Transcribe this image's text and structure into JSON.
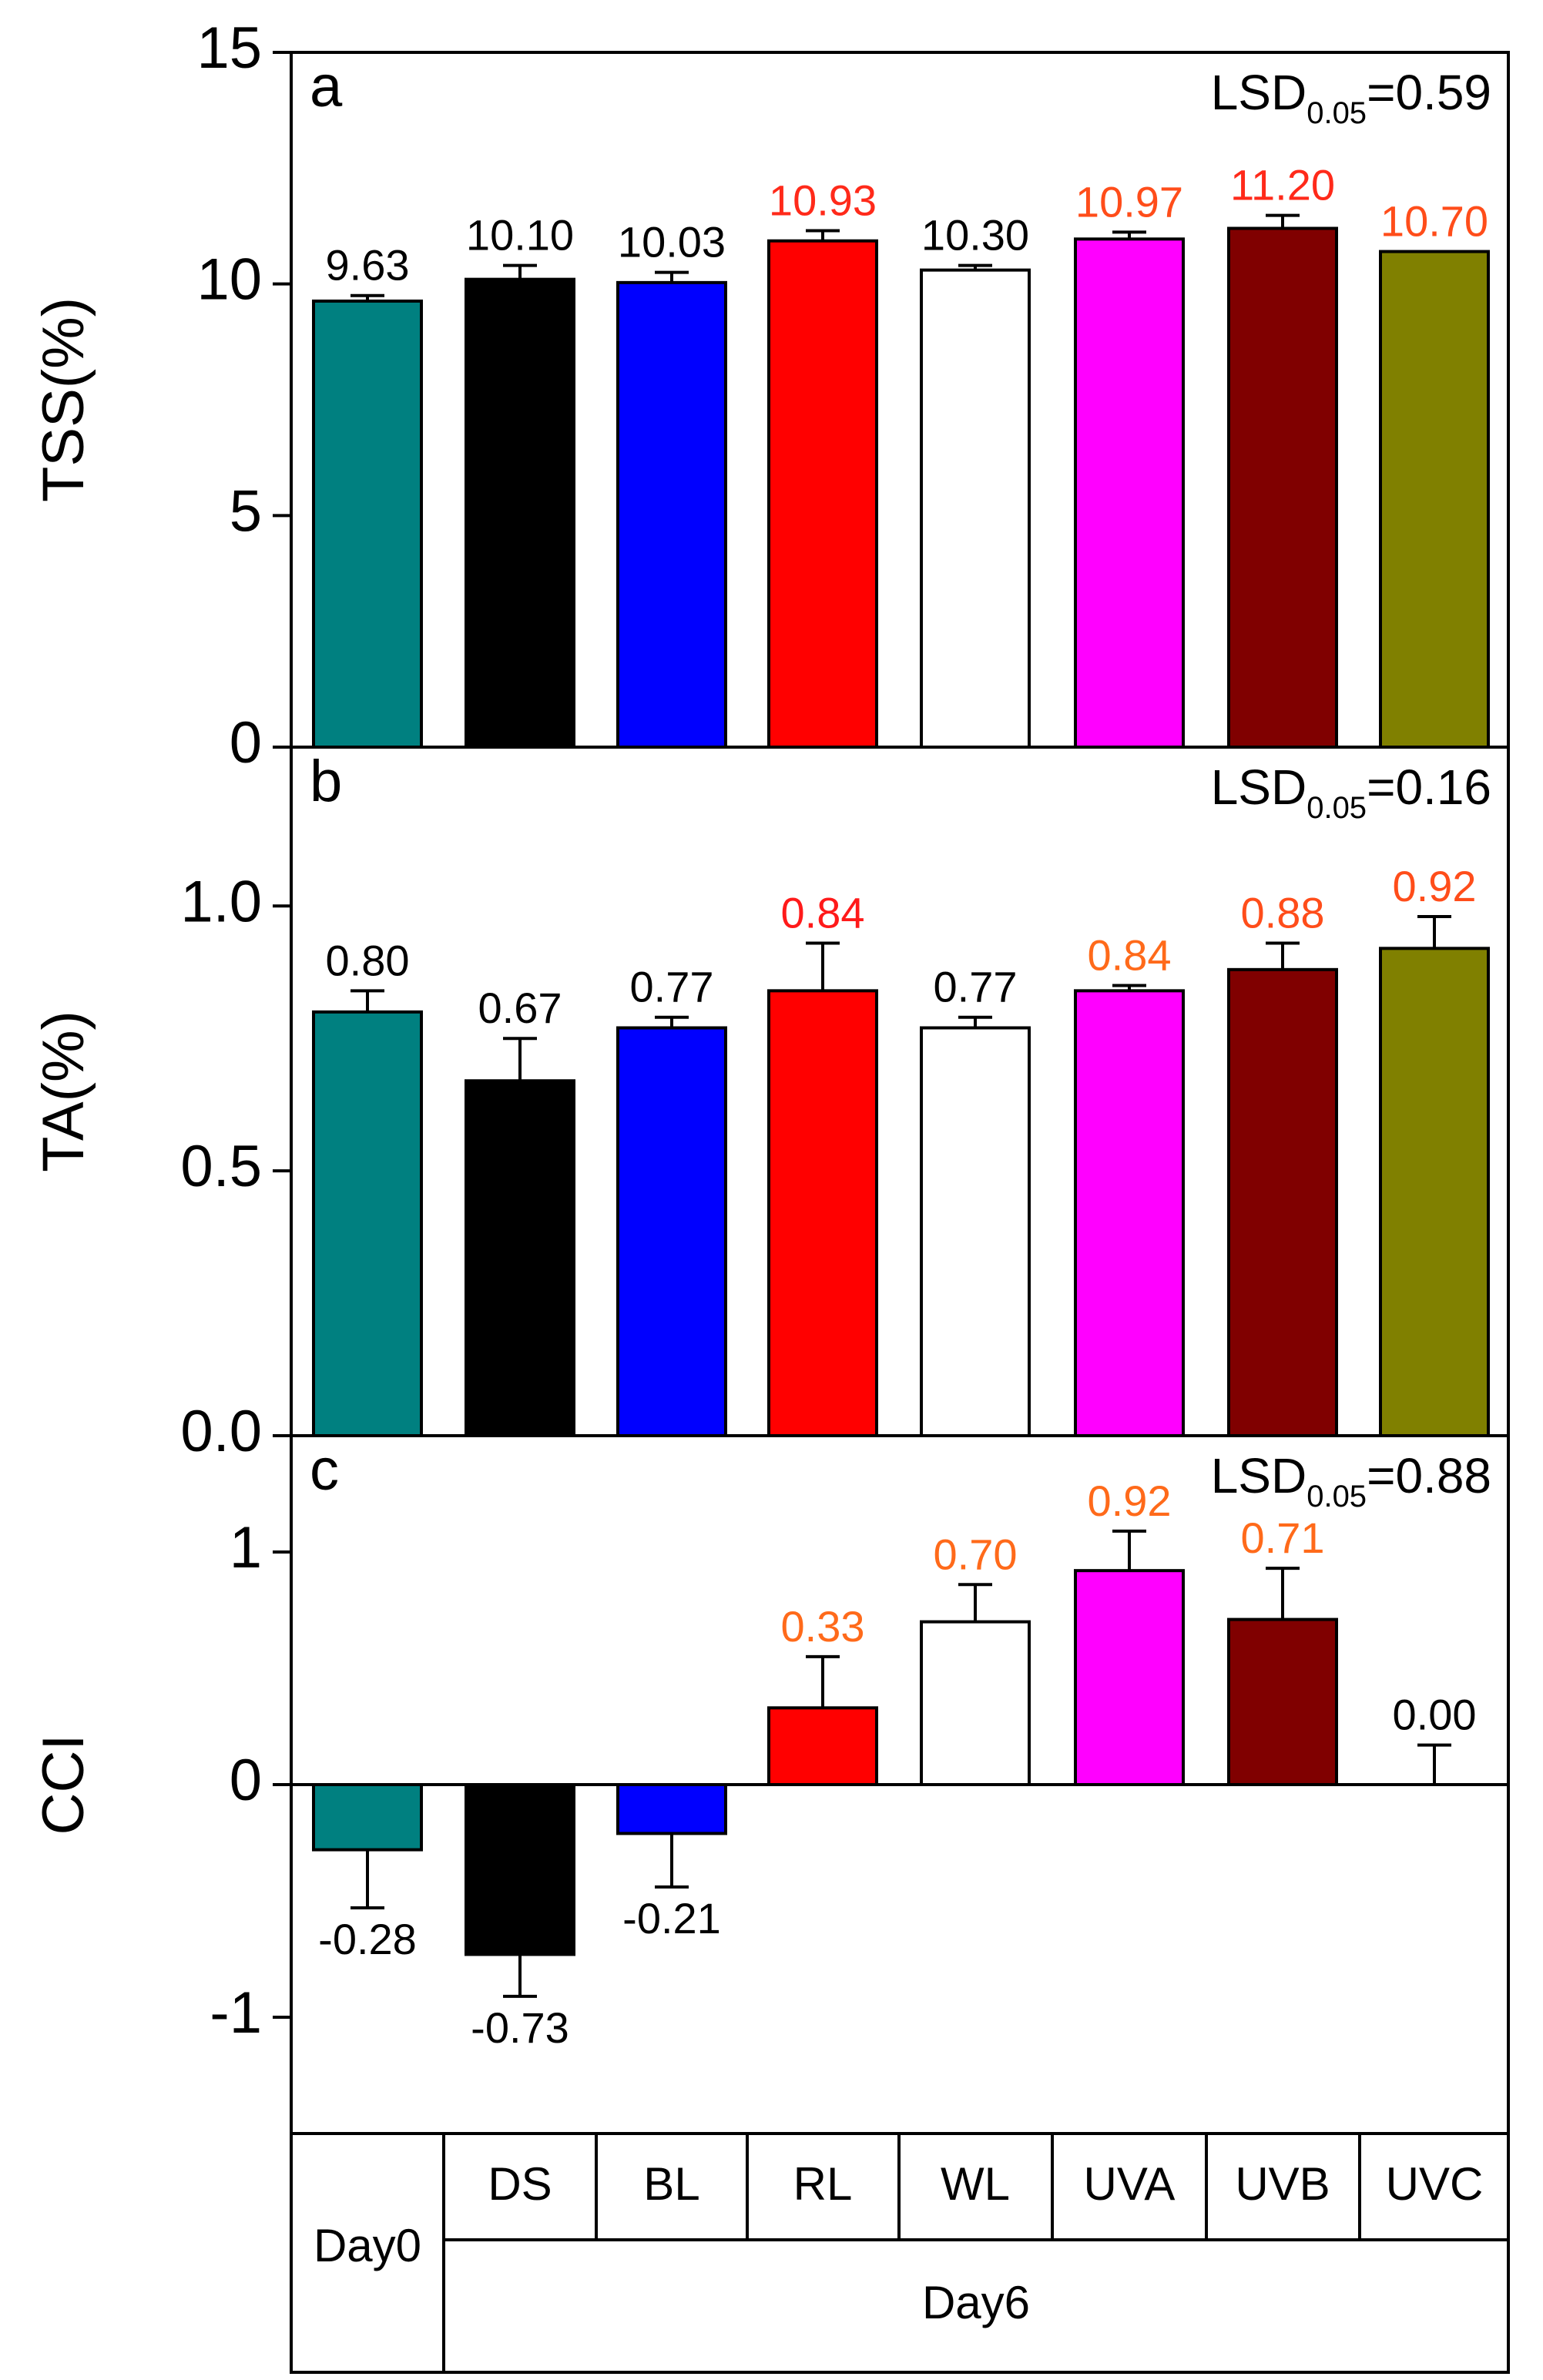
{
  "chart_data": [
    {
      "type": "bar",
      "panel": "a",
      "ylabel": "TSS(%)",
      "ylim": [
        0,
        15
      ],
      "yticks": [
        "0",
        "5",
        "10",
        "15"
      ],
      "lsd": {
        "prefix": "LSD",
        "sub": "0.05",
        "value": "=0.59"
      },
      "categories": [
        "Day0",
        "DS",
        "BL",
        "RL",
        "WL",
        "UVA",
        "UVB",
        "UVC"
      ],
      "values": [
        9.63,
        10.1,
        10.03,
        10.93,
        10.3,
        10.97,
        11.2,
        10.7
      ],
      "errors": [
        0.12,
        0.3,
        0.22,
        0.22,
        0.1,
        0.15,
        0.28,
        0.0
      ],
      "labels": [
        "9.63",
        "10.10",
        "10.03",
        "10.93",
        "10.30",
        "10.97",
        "11.20",
        "10.70"
      ],
      "label_colors": [
        "#000000",
        "#000000",
        "#000000",
        "#ff2a1a",
        "#000000",
        "#ff4d1a",
        "#ff2a1a",
        "#ff4d1a"
      ]
    },
    {
      "type": "bar",
      "panel": "b",
      "ylabel": "TA(%)",
      "ylim": [
        0,
        1.3
      ],
      "yticks": [
        "0.0",
        "0.5",
        "1.0"
      ],
      "lsd": {
        "prefix": "LSD",
        "sub": "0.05",
        "value": "=0.16"
      },
      "categories": [
        "Day0",
        "DS",
        "BL",
        "RL",
        "WL",
        "UVA",
        "UVB",
        "UVC"
      ],
      "values": [
        0.8,
        0.67,
        0.77,
        0.84,
        0.77,
        0.84,
        0.88,
        0.92
      ],
      "errors": [
        0.04,
        0.08,
        0.02,
        0.09,
        0.02,
        0.01,
        0.05,
        0.06
      ],
      "labels": [
        "0.80",
        "0.67",
        "0.77",
        "0.84",
        "0.77",
        "0.84",
        "0.88",
        "0.92"
      ],
      "label_colors": [
        "#000000",
        "#000000",
        "#000000",
        "#ff1a1a",
        "#000000",
        "#ff6a1a",
        "#ff4d1a",
        "#ff4d1a"
      ]
    },
    {
      "type": "bar",
      "panel": "c",
      "ylabel": "CCI",
      "ylim": [
        -1.5,
        1.5
      ],
      "yticks": [
        "-1",
        "0",
        "1"
      ],
      "lsd": {
        "prefix": "LSD",
        "sub": "0.05",
        "value": "=0.88"
      },
      "categories": [
        "Day0",
        "DS",
        "BL",
        "RL",
        "WL",
        "UVA",
        "UVB",
        "UVC"
      ],
      "values": [
        -0.28,
        -0.73,
        -0.21,
        0.33,
        0.7,
        0.92,
        0.71,
        0.0
      ],
      "errors": [
        0.25,
        0.18,
        0.23,
        0.22,
        0.16,
        0.17,
        0.22,
        0.17
      ],
      "labels": [
        "-0.28",
        "-0.73",
        "-0.21",
        "0.33",
        "0.70",
        "0.92",
        "0.71",
        "0.00"
      ],
      "label_colors": [
        "#000000",
        "#000000",
        "#000000",
        "#ff6a1a",
        "#ff6a1a",
        "#ff6a1a",
        "#ff6a1a",
        "#000000"
      ]
    }
  ],
  "bar_colors": [
    "#008080",
    "#000000",
    "#0000ff",
    "#ff0000",
    "#ffffff",
    "#ff00ff",
    "#800000",
    "#808000"
  ],
  "x_table": {
    "day0_label": "Day0",
    "day6_label": "Day6",
    "day6_groups": [
      "DS",
      "BL",
      "RL",
      "WL",
      "UVA",
      "UVB",
      "UVC"
    ]
  }
}
